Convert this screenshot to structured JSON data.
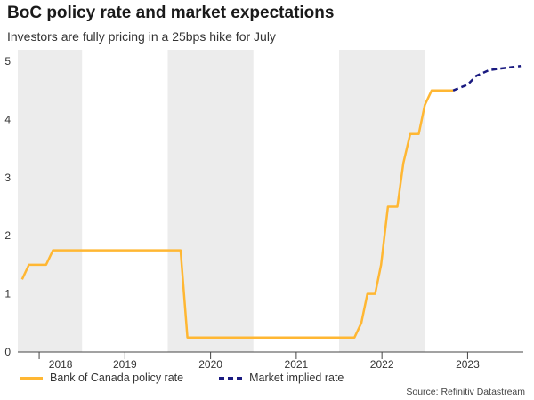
{
  "title": "BoC policy rate and market expectations",
  "subtitle": "Investors are fully pricing in a 25bps hike for July",
  "source": "Source: Refinitiv Datastream",
  "colors": {
    "policy": "#FFB733",
    "market": "#1a1a80",
    "band": "#ececec",
    "axis": "#444444"
  },
  "chart_data": {
    "type": "line",
    "xlim": [
      2017.75,
      2023.65
    ],
    "ylim": [
      0,
      5.2
    ],
    "yticks": [
      0,
      1,
      2,
      3,
      4,
      5
    ],
    "year_labels": [
      {
        "label": "2018",
        "at": 2018.25
      },
      {
        "label": "2019",
        "at": 2019.0
      },
      {
        "label": "2020",
        "at": 2020.0
      },
      {
        "label": "2021",
        "at": 2021.0
      },
      {
        "label": "2022",
        "at": 2022.0
      },
      {
        "label": "2023",
        "at": 2023.0
      }
    ],
    "year_dividers": [
      2018.0,
      2019.0,
      2020.0,
      2021.0,
      2022.0,
      2023.0
    ],
    "shaded_years": [
      {
        "from": 2017.75,
        "to": 2018.5
      },
      {
        "from": 2019.5,
        "to": 2020.5
      },
      {
        "from": 2021.5,
        "to": 2022.5
      }
    ],
    "series": [
      {
        "name": "Bank of Canada policy rate",
        "style": "solid",
        "points": [
          [
            2017.8,
            1.25
          ],
          [
            2017.88,
            1.5
          ],
          [
            2018.0,
            1.5
          ],
          [
            2018.08,
            1.5
          ],
          [
            2018.16,
            1.75
          ],
          [
            2018.3,
            1.75
          ],
          [
            2019.0,
            1.75
          ],
          [
            2019.5,
            1.75
          ],
          [
            2019.65,
            1.75
          ],
          [
            2019.73,
            0.25
          ],
          [
            2020.0,
            0.25
          ],
          [
            2021.0,
            0.25
          ],
          [
            2021.68,
            0.25
          ],
          [
            2021.76,
            0.5
          ],
          [
            2021.83,
            1.0
          ],
          [
            2021.92,
            1.0
          ],
          [
            2021.99,
            1.5
          ],
          [
            2022.07,
            2.5
          ],
          [
            2022.18,
            2.5
          ],
          [
            2022.25,
            3.25
          ],
          [
            2022.33,
            3.75
          ],
          [
            2022.43,
            3.75
          ],
          [
            2022.5,
            4.25
          ],
          [
            2022.58,
            4.5
          ],
          [
            2022.83,
            4.5
          ]
        ]
      },
      {
        "name": "Market implied rate",
        "style": "dashed",
        "points": [
          [
            2022.83,
            4.5
          ],
          [
            2023.0,
            4.6
          ],
          [
            2023.1,
            4.75
          ],
          [
            2023.25,
            4.85
          ],
          [
            2023.4,
            4.88
          ],
          [
            2023.62,
            4.92
          ]
        ]
      }
    ]
  }
}
